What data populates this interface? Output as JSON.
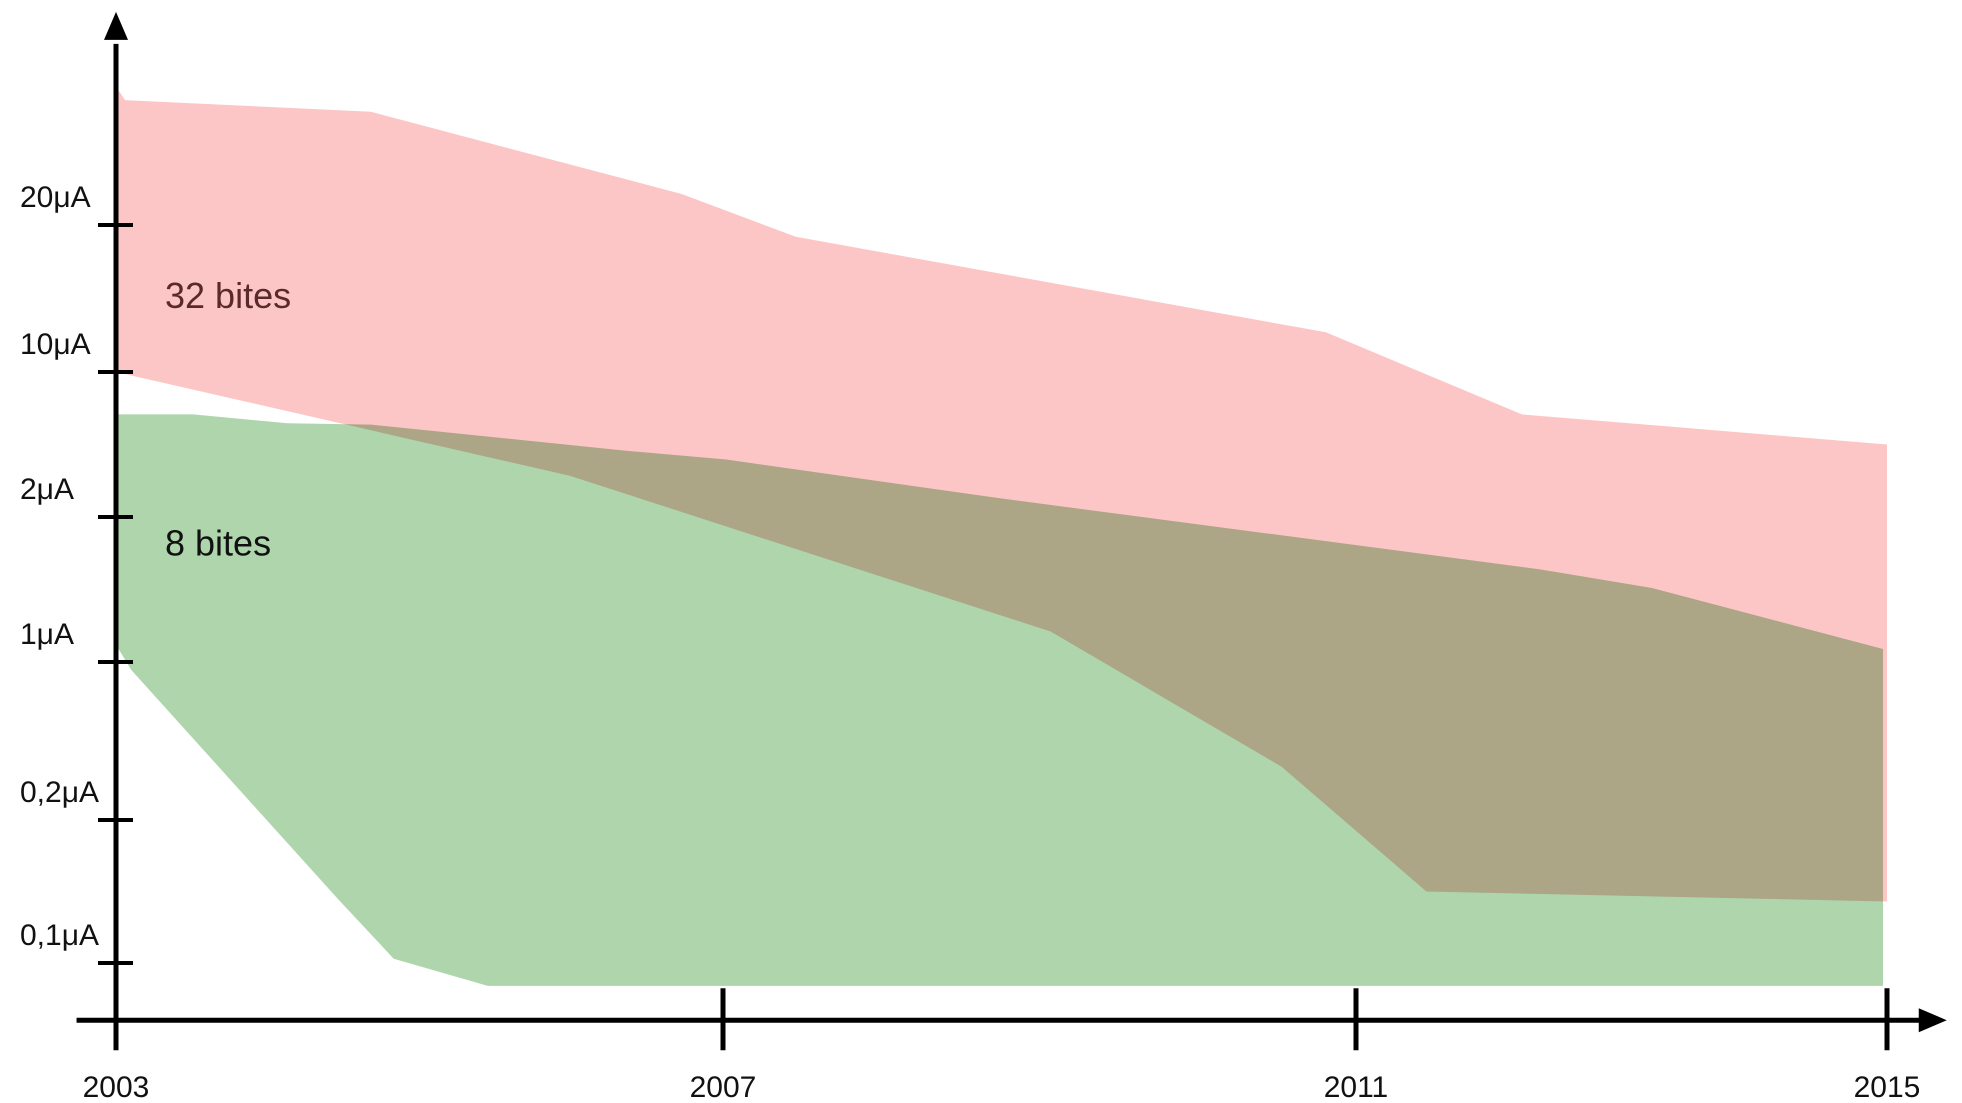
{
  "chart_data": {
    "type": "band",
    "xlim": [
      2002.74,
      2015.45
    ],
    "xticks": [
      2003,
      2007,
      2011,
      2015
    ],
    "ylim": [
      0.06,
      33
    ],
    "yticks": [
      {
        "value": 0.1,
        "label": "0,1μA"
      },
      {
        "value": 0.2,
        "label": "0,2μA"
      },
      {
        "value": 1,
        "label": "1μA"
      },
      {
        "value": 2,
        "label": "2μA"
      },
      {
        "value": 10,
        "label": "10μA"
      },
      {
        "value": 20,
        "label": "20μA"
      }
    ],
    "series": [
      {
        "name": "32 bites",
        "color": "#fcc6c6",
        "label_color": "#5a2a2a",
        "upper": {
          "x": [
            2003,
            2003.06,
            2004.68,
            2006.73,
            2007.46,
            2010.81,
            2012.25,
            2015
          ],
          "values": [
            29.4,
            28.5,
            27.7,
            22.1,
            19.2,
            12.7,
            7.66,
            6.0
          ]
        },
        "lower": {
          "x": [
            2003,
            2005.99,
            2009.07,
            2010.53,
            2011.53,
            2015
          ],
          "values": [
            10,
            4.28,
            1.21,
            0.47,
            0.15,
            0.143
          ]
        }
      },
      {
        "name": "8 bites",
        "color": "#aed5ac",
        "label_color": "#111111",
        "upper": {
          "x": [
            2003,
            2003.51,
            2004.13,
            2004.68,
            2006.36,
            2007.02,
            2008.75,
            2012.38,
            2013.23,
            2014.97
          ],
          "values": [
            7.66,
            7.66,
            7.17,
            7.1,
            5.66,
            5.17,
            3.03,
            1.64,
            1.51,
            1.09
          ]
        },
        "lower": {
          "x": [
            2003,
            2003.1,
            2004.46,
            2004.83,
            2005.45,
            2014.97
          ],
          "values": [
            1.12,
            0.96,
            0.145,
            0.103,
            0.084,
            0.084
          ]
        }
      }
    ]
  }
}
